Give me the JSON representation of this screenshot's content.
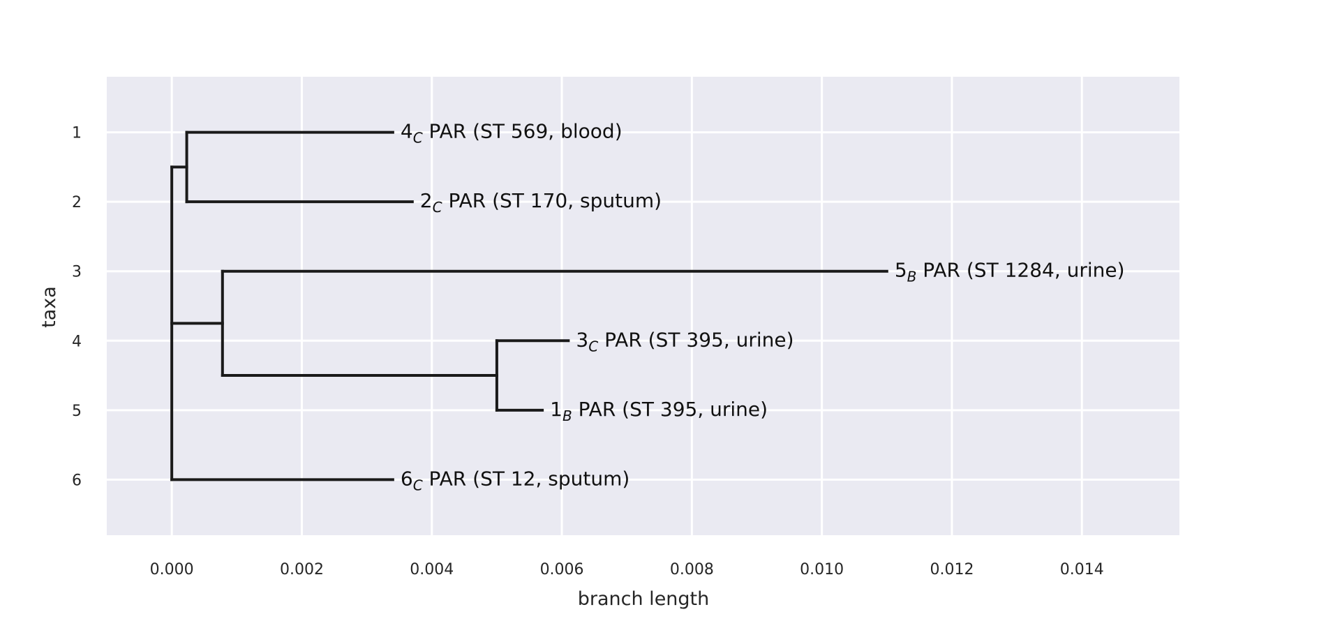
{
  "chart_data": {
    "type": "tree",
    "title": "",
    "xlabel": "branch length",
    "ylabel": "taxa",
    "xlim": [
      -0.001,
      0.0155
    ],
    "ylim": [
      6.8,
      0.2
    ],
    "xticks": [
      0.0,
      0.002,
      0.004,
      0.006,
      0.008,
      0.01,
      0.012,
      0.014
    ],
    "xtick_labels": [
      "0.000",
      "0.002",
      "0.004",
      "0.006",
      "0.008",
      "0.010",
      "0.012",
      "0.014"
    ],
    "yticks": [
      1,
      2,
      3,
      4,
      5,
      6
    ],
    "ytick_labels": [
      "1",
      "2",
      "3",
      "4",
      "5",
      "6"
    ],
    "grid": true,
    "background": "#eaeaf2",
    "line_color": "#1a1a1a",
    "nodes": [
      {
        "id": "n4C",
        "x": 0.0034,
        "y": 1,
        "parent": "cA",
        "label": {
          "num": "4",
          "sub": "C",
          "text": " PAR (ST 569, blood)"
        }
      },
      {
        "id": "n2C",
        "x": 0.0037,
        "y": 2,
        "parent": "cA",
        "label": {
          "num": "2",
          "sub": "C",
          "text": " PAR (ST 170, sputum)"
        }
      },
      {
        "id": "n5B",
        "x": 0.011,
        "y": 3,
        "parent": "cB",
        "label": {
          "num": "5",
          "sub": "B",
          "text": " PAR (ST 1284, urine)"
        }
      },
      {
        "id": "n3C",
        "x": 0.0061,
        "y": 4,
        "parent": "cC",
        "label": {
          "num": "3",
          "sub": "C",
          "text": " PAR (ST 395, urine)"
        }
      },
      {
        "id": "n1B",
        "x": 0.0057,
        "y": 5,
        "parent": "cC",
        "label": {
          "num": "1",
          "sub": "B",
          "text": " PAR (ST 395, urine)"
        }
      },
      {
        "id": "n6C",
        "x": 0.0034,
        "y": 6,
        "parent": "root",
        "label": {
          "num": "6",
          "sub": "C",
          "text": " PAR (ST 12, sputum)"
        }
      },
      {
        "id": "cA",
        "x": 0.00023,
        "y": 1.5,
        "parent": "root"
      },
      {
        "id": "cB",
        "x": 0.00078,
        "y": 3.75,
        "parent": "root"
      },
      {
        "id": "cC",
        "x": 0.005,
        "y": 4.5,
        "parent": "cB"
      },
      {
        "id": "root",
        "x": 0.0,
        "y": 3.75,
        "parent": null
      }
    ]
  }
}
